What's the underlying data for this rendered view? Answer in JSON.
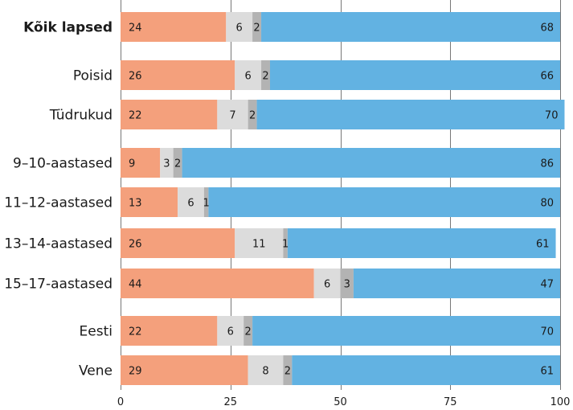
{
  "chart_data": {
    "type": "bar",
    "orientation": "horizontal",
    "stacked": true,
    "categories": [
      "Kõik lapsed",
      "Poisid",
      "Tüdrukud",
      "9–10-aastased",
      "11–12-aastased",
      "13–14-aastased",
      "15–17-aastased",
      "Eesti",
      "Vene"
    ],
    "bold_categories": [
      "Kõik lapsed"
    ],
    "groups": [
      [
        0
      ],
      [
        1,
        2
      ],
      [
        3,
        4,
        5,
        6
      ],
      [
        7,
        8
      ]
    ],
    "series": [
      {
        "color": "#f4a07c",
        "values": [
          24,
          26,
          22,
          9,
          13,
          26,
          44,
          22,
          29
        ]
      },
      {
        "color": "#dcdcdc",
        "values": [
          6,
          6,
          7,
          3,
          6,
          11,
          6,
          6,
          8
        ]
      },
      {
        "color": "#b3b3b3",
        "values": [
          2,
          2,
          2,
          2,
          1,
          1,
          3,
          2,
          2
        ]
      },
      {
        "color": "#62b2e2",
        "values": [
          68,
          66,
          70,
          86,
          80,
          61,
          47,
          70,
          61
        ]
      }
    ],
    "xlim": [
      0,
      100
    ],
    "xticks": [
      0,
      25,
      50,
      75,
      100
    ],
    "xtick_labels": [
      "0",
      "25",
      "50",
      "75",
      "100"
    ],
    "grid": true,
    "title": "",
    "xlabel": "",
    "ylabel": ""
  }
}
